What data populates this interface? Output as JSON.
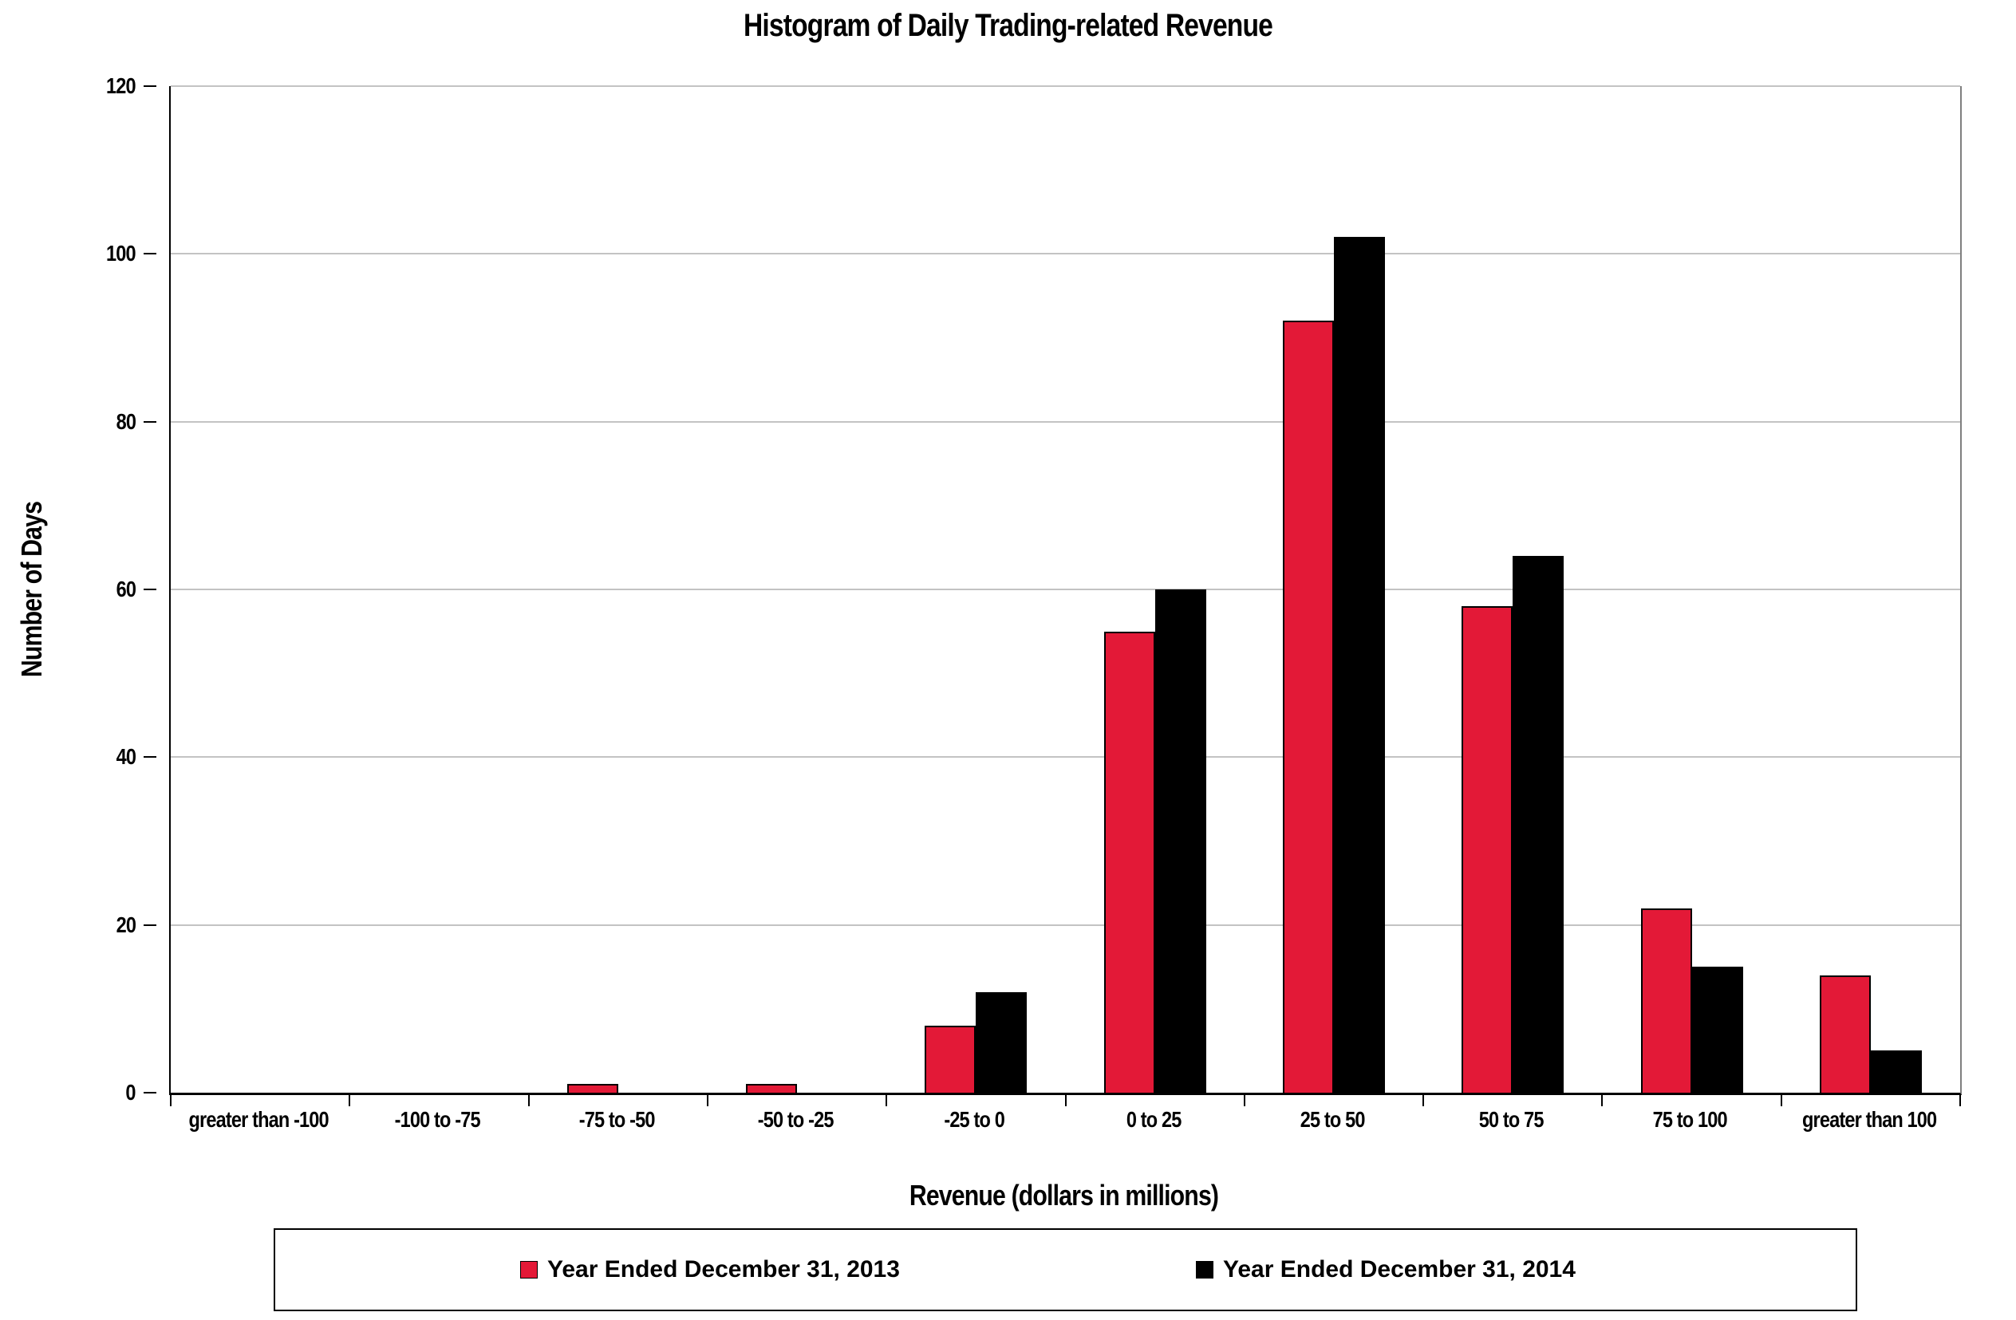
{
  "chart_data": {
    "type": "bar",
    "title": "Histogram of Daily Trading-related Revenue",
    "xlabel": "Revenue (dollars in millions)",
    "ylabel": "Number of Days",
    "categories": [
      "greater than -100",
      "-100 to -75",
      "-75 to -50",
      "-50 to -25",
      "-25 to 0",
      "0 to 25",
      "25 to 50",
      "50 to 75",
      "75 to 100",
      "greater than 100"
    ],
    "series": [
      {
        "name": "Year Ended December 31, 2013",
        "color": "#E31937",
        "values": [
          0,
          0,
          1,
          1,
          8,
          55,
          92,
          58,
          22,
          14
        ]
      },
      {
        "name": "Year Ended December 31, 2014",
        "color": "#000000",
        "values": [
          0,
          0,
          0,
          0,
          12,
          60,
          102,
          64,
          15,
          5
        ]
      }
    ],
    "ylim": [
      0,
      120
    ],
    "yticks": [
      0,
      20,
      40,
      60,
      80,
      100,
      120
    ],
    "grid": true,
    "legend_position": "bottom-box"
  },
  "colors": {
    "series_2013": "#E31937",
    "series_2014": "#000000",
    "gridline": "#C3C3C3",
    "plot_border": "#7F7F7F",
    "axis": "#000000",
    "background": "#FFFFFF"
  }
}
